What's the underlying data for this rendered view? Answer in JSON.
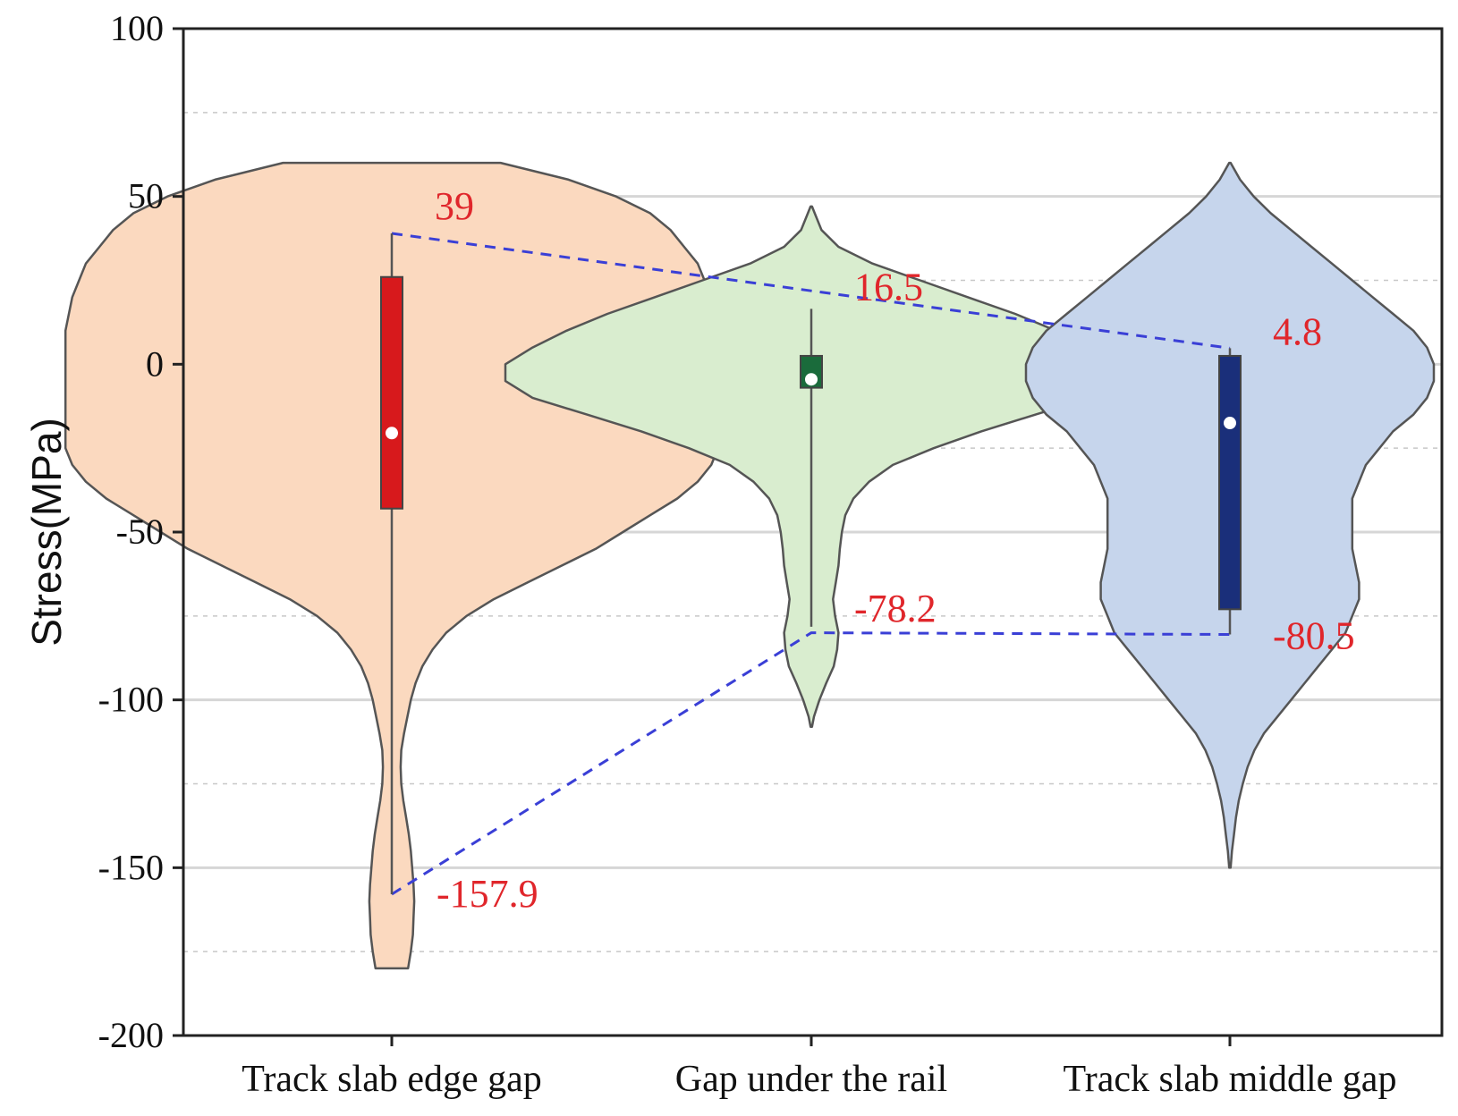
{
  "chart_data": {
    "type": "violin",
    "title": "",
    "xlabel": "",
    "ylabel": "Stress(MPa)",
    "ylim": [
      -200,
      100
    ],
    "yticks": [
      -200,
      -150,
      -100,
      -50,
      0,
      50,
      100
    ],
    "minor_gridlines": [
      -175,
      -125,
      -75,
      -25,
      25,
      75
    ],
    "grid": true,
    "legend": "none",
    "categories": [
      "Track slab edge gap",
      "Gap under the rail",
      "Track slab middle gap"
    ],
    "series": [
      {
        "category": "Track slab edge gap",
        "fill": "#fbd9bf",
        "box_color": "#d7191c",
        "density": [
          [
            60,
            0.16
          ],
          [
            55,
            0.26
          ],
          [
            50,
            0.33
          ],
          [
            45,
            0.38
          ],
          [
            40,
            0.41
          ],
          [
            35,
            0.43
          ],
          [
            30,
            0.45
          ],
          [
            25,
            0.46
          ],
          [
            20,
            0.47
          ],
          [
            10,
            0.48
          ],
          [
            0,
            0.48
          ],
          [
            -10,
            0.48
          ],
          [
            -20,
            0.48
          ],
          [
            -25,
            0.48
          ],
          [
            -30,
            0.47
          ],
          [
            -35,
            0.45
          ],
          [
            -40,
            0.42
          ],
          [
            -45,
            0.38
          ],
          [
            -50,
            0.34
          ],
          [
            -55,
            0.3
          ],
          [
            -60,
            0.25
          ],
          [
            -65,
            0.2
          ],
          [
            -70,
            0.15
          ],
          [
            -75,
            0.11
          ],
          [
            -80,
            0.08
          ],
          [
            -85,
            0.06
          ],
          [
            -90,
            0.045
          ],
          [
            -95,
            0.035
          ],
          [
            -100,
            0.028
          ],
          [
            -105,
            0.023
          ],
          [
            -110,
            0.018
          ],
          [
            -115,
            0.014
          ],
          [
            -120,
            0.013
          ],
          [
            -125,
            0.014
          ],
          [
            -130,
            0.017
          ],
          [
            -135,
            0.021
          ],
          [
            -140,
            0.025
          ],
          [
            -145,
            0.028
          ],
          [
            -150,
            0.03
          ],
          [
            -155,
            0.032
          ],
          [
            -160,
            0.033
          ],
          [
            -165,
            0.032
          ],
          [
            -170,
            0.031
          ],
          [
            -175,
            0.028
          ],
          [
            -180,
            0.024
          ]
        ],
        "q1": -43,
        "median": -20.5,
        "q3": 26,
        "whisker_low": -157.9,
        "whisker_high": 39,
        "mean": -20.5
      },
      {
        "category": "Gap under the rail",
        "fill": "#d9edcf",
        "box_color": "#1a6b3b",
        "density": [
          [
            47,
            0.001
          ],
          [
            45,
            0.005
          ],
          [
            40,
            0.015
          ],
          [
            35,
            0.04
          ],
          [
            30,
            0.09
          ],
          [
            25,
            0.16
          ],
          [
            20,
            0.23
          ],
          [
            15,
            0.3
          ],
          [
            10,
            0.36
          ],
          [
            5,
            0.41
          ],
          [
            0,
            0.45
          ],
          [
            -5,
            0.45
          ],
          [
            -10,
            0.41
          ],
          [
            -15,
            0.33
          ],
          [
            -20,
            0.25
          ],
          [
            -25,
            0.18
          ],
          [
            -30,
            0.12
          ],
          [
            -35,
            0.085
          ],
          [
            -40,
            0.062
          ],
          [
            -45,
            0.05
          ],
          [
            -50,
            0.045
          ],
          [
            -55,
            0.042
          ],
          [
            -60,
            0.04
          ],
          [
            -65,
            0.036
          ],
          [
            -70,
            0.032
          ],
          [
            -75,
            0.035
          ],
          [
            -80,
            0.04
          ],
          [
            -85,
            0.038
          ],
          [
            -90,
            0.033
          ],
          [
            -95,
            0.022
          ],
          [
            -100,
            0.012
          ],
          [
            -105,
            0.004
          ],
          [
            -108,
            0.001
          ]
        ],
        "q1": -7,
        "median": -4.5,
        "q3": 2.5,
        "whisker_low": -78.2,
        "whisker_high": 16.5,
        "mean": -4.5
      },
      {
        "category": "Track slab middle gap",
        "fill": "#c6d5ec",
        "box_color": "#1a2f7a",
        "density": [
          [
            60,
            0.001
          ],
          [
            55,
            0.015
          ],
          [
            50,
            0.035
          ],
          [
            45,
            0.06
          ],
          [
            40,
            0.09
          ],
          [
            35,
            0.12
          ],
          [
            30,
            0.15
          ],
          [
            25,
            0.18
          ],
          [
            20,
            0.21
          ],
          [
            15,
            0.24
          ],
          [
            10,
            0.27
          ],
          [
            5,
            0.29
          ],
          [
            0,
            0.3
          ],
          [
            -5,
            0.3
          ],
          [
            -10,
            0.29
          ],
          [
            -15,
            0.27
          ],
          [
            -20,
            0.24
          ],
          [
            -25,
            0.22
          ],
          [
            -30,
            0.2
          ],
          [
            -35,
            0.19
          ],
          [
            -40,
            0.18
          ],
          [
            -45,
            0.18
          ],
          [
            -50,
            0.18
          ],
          [
            -55,
            0.18
          ],
          [
            -60,
            0.185
          ],
          [
            -65,
            0.19
          ],
          [
            -70,
            0.19
          ],
          [
            -75,
            0.18
          ],
          [
            -80,
            0.17
          ],
          [
            -85,
            0.15
          ],
          [
            -90,
            0.13
          ],
          [
            -95,
            0.11
          ],
          [
            -100,
            0.09
          ],
          [
            -105,
            0.07
          ],
          [
            -110,
            0.05
          ],
          [
            -115,
            0.036
          ],
          [
            -120,
            0.026
          ],
          [
            -125,
            0.019
          ],
          [
            -130,
            0.013
          ],
          [
            -135,
            0.009
          ],
          [
            -140,
            0.006
          ],
          [
            -145,
            0.003
          ],
          [
            -150,
            0.001
          ]
        ],
        "q1": -73,
        "median": -17.5,
        "q3": 2.5,
        "whisker_low": -80.5,
        "whisker_high": 4.8,
        "mean": -17.5
      }
    ],
    "annotations": [
      {
        "text": "39",
        "category": 0,
        "value": 39
      },
      {
        "text": "-157.9",
        "category": 0,
        "value": -157.9
      },
      {
        "text": "16.5",
        "category": 1,
        "value": 16.5
      },
      {
        "text": "-78.2",
        "category": 1,
        "value": -78.2
      },
      {
        "text": "4.8",
        "category": 2,
        "value": 4.8
      },
      {
        "text": "-80.5",
        "category": 2,
        "value": -80.5
      }
    ],
    "connector_lines": [
      {
        "color": "#3a3fd6",
        "style": "dashed",
        "points": [
          [
            0,
            39
          ],
          [
            2,
            4.8
          ]
        ]
      },
      {
        "color": "#3a3fd6",
        "style": "dashed",
        "points": [
          [
            0,
            -157.9
          ],
          [
            1,
            -80
          ],
          [
            2,
            -80.5
          ]
        ]
      }
    ]
  }
}
